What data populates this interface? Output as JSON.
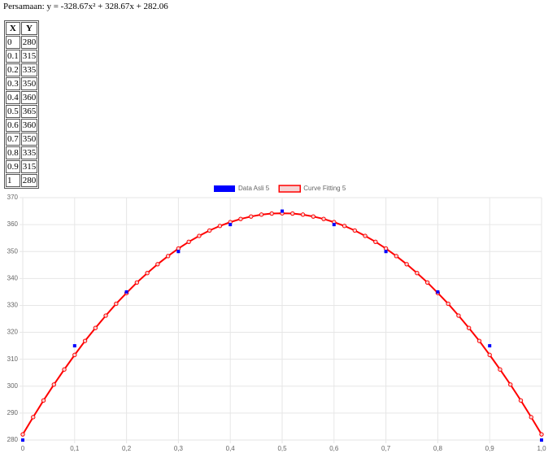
{
  "equation": "Persamaan: y = -328.67x² + 328.67x + 282.06",
  "table": {
    "header": [
      "X",
      "Y"
    ],
    "rows": [
      [
        0,
        280
      ],
      [
        0.1,
        315
      ],
      [
        0.2,
        335
      ],
      [
        0.3,
        350
      ],
      [
        0.4,
        360
      ],
      [
        0.5,
        365
      ],
      [
        0.6,
        360
      ],
      [
        0.7,
        350
      ],
      [
        0.8,
        335
      ],
      [
        0.9,
        315
      ],
      [
        1,
        280
      ]
    ]
  },
  "chart_data": {
    "type": "scatter",
    "xlim": [
      0,
      1
    ],
    "ylim": [
      280,
      370
    ],
    "xticks": [
      0,
      {
        "value": 0.1,
        "label": "0,1"
      },
      {
        "value": 0.2,
        "label": "0,2"
      },
      {
        "value": 0.3,
        "label": "0,3"
      },
      {
        "value": 0.4,
        "label": "0,4"
      },
      {
        "value": 0.5,
        "label": "0,5"
      },
      {
        "value": 0.6,
        "label": "0,6"
      },
      {
        "value": 0.7,
        "label": "0,7"
      },
      {
        "value": 0.8,
        "label": "0,8"
      },
      {
        "value": 0.9,
        "label": "0,9"
      },
      {
        "value": 1,
        "label": "1,0"
      }
    ],
    "yticks": [
      280,
      290,
      300,
      310,
      320,
      330,
      340,
      350,
      360,
      370
    ],
    "grid": true,
    "legend": "top",
    "series": [
      {
        "name": "Data Asli 5",
        "type": "scatter",
        "color": "#0000ff",
        "x": [
          0,
          0.1,
          0.2,
          0.3,
          0.4,
          0.5,
          0.6,
          0.7,
          0.8,
          0.9,
          1
        ],
        "values": [
          280,
          315,
          335,
          350,
          360,
          365,
          360,
          350,
          335,
          315,
          280
        ]
      },
      {
        "name": "Curve Fitting 5",
        "type": "line",
        "color": "#ff0000",
        "fill_color": "#f4d4d4",
        "x": [
          0,
          0.02,
          0.04,
          0.06,
          0.08,
          0.1,
          0.12,
          0.14,
          0.16,
          0.18,
          0.2,
          0.22,
          0.24,
          0.26,
          0.28,
          0.3,
          0.32,
          0.34,
          0.36,
          0.38,
          0.4,
          0.42,
          0.44,
          0.46,
          0.48,
          0.5,
          0.52,
          0.54,
          0.56,
          0.58,
          0.6,
          0.62,
          0.64,
          0.66,
          0.68,
          0.7,
          0.72,
          0.74,
          0.76,
          0.78,
          0.8,
          0.82,
          0.84,
          0.86,
          0.88,
          0.9,
          0.92,
          0.94,
          0.96,
          0.98,
          1
        ],
        "values": [
          282.1,
          288.5,
          294.7,
          300.6,
          306.2,
          311.6,
          316.8,
          321.6,
          326.2,
          330.6,
          334.6,
          338.5,
          342.0,
          345.3,
          348.3,
          351.1,
          353.6,
          355.8,
          357.8,
          359.5,
          360.9,
          362.1,
          363.0,
          363.7,
          364.1,
          364.2,
          364.1,
          363.7,
          363.0,
          362.1,
          360.9,
          359.5,
          357.8,
          355.8,
          353.6,
          351.1,
          348.3,
          345.3,
          342.0,
          338.5,
          334.6,
          330.6,
          326.2,
          321.6,
          316.8,
          311.6,
          306.2,
          300.6,
          294.7,
          288.5,
          282.1
        ]
      }
    ]
  }
}
